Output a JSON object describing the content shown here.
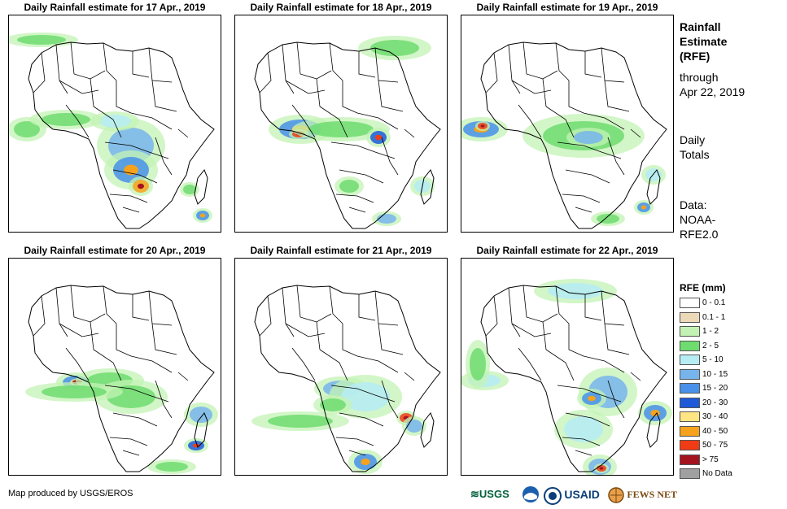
{
  "panels": [
    {
      "title": "Daily Rainfall estimate for 17 Apr., 2019"
    },
    {
      "title": "Daily Rainfall estimate for 18 Apr., 2019"
    },
    {
      "title": "Daily Rainfall estimate for 19 Apr., 2019"
    },
    {
      "title": "Daily Rainfall estimate for 20 Apr., 2019"
    },
    {
      "title": "Daily Rainfall estimate for 21 Apr., 2019"
    },
    {
      "title": "Daily Rainfall estimate for 22 Apr., 2019"
    }
  ],
  "sidebar": {
    "title_line1": "Rainfall",
    "title_line2": "Estimate",
    "title_line3": "(RFE)",
    "through_label": "through",
    "through_date": "Apr 22, 2019",
    "totals_line1": "Daily",
    "totals_line2": "Totals",
    "data_line1": "Data:",
    "data_line2": "NOAA-",
    "data_line3": "RFE2.0"
  },
  "legend": {
    "title": "RFE (mm)",
    "items": [
      {
        "label": "0 - 0.1",
        "color": "#ffffff"
      },
      {
        "label": "0.1 - 1",
        "color": "#ecd9b8"
      },
      {
        "label": "1 - 2",
        "color": "#c3f3b4"
      },
      {
        "label": "2 - 5",
        "color": "#6fdc6f"
      },
      {
        "label": "5 - 10",
        "color": "#b6ecf4"
      },
      {
        "label": "10 - 15",
        "color": "#78b4ec"
      },
      {
        "label": "15 - 20",
        "color": "#4890e8"
      },
      {
        "label": "20 - 30",
        "color": "#1e5ad8"
      },
      {
        "label": "30 - 40",
        "color": "#ffe682"
      },
      {
        "label": "40 - 50",
        "color": "#f7a21c"
      },
      {
        "label": "50 - 75",
        "color": "#f03c14"
      },
      {
        "label": "> 75",
        "color": "#a4141e"
      },
      {
        "label": "No Data",
        "color": "#a0a0a0"
      }
    ]
  },
  "footer": {
    "credit": "Map produced by USGS/EROS",
    "logos": [
      "USGS",
      "NOAA",
      "USAID",
      "FEWS NET"
    ]
  }
}
